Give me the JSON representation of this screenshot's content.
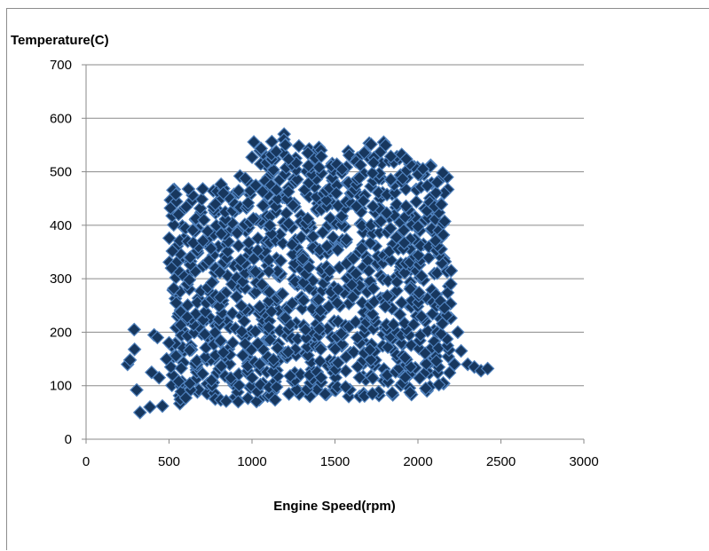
{
  "chart_data": {
    "type": "scatter",
    "title": "",
    "xlabel": "Engine Speed(rpm)",
    "ylabel": "Temperature(C)",
    "xlim": [
      0,
      3000
    ],
    "ylim": [
      0,
      700
    ],
    "x_ticks": [
      "0",
      "500",
      "1000",
      "1500",
      "2000",
      "2500",
      "3000"
    ],
    "y_ticks": [
      "0",
      "100",
      "200",
      "300",
      "400",
      "500",
      "600",
      "700"
    ],
    "grid": "horizontal",
    "legend": "none",
    "marker": "diamond",
    "marker_fill": "#17375e",
    "marker_edge": "#4f81bd",
    "series": [
      {
        "points": [
          [
            250,
            140
          ],
          [
            265,
            148
          ],
          [
            290,
            205
          ],
          [
            292,
            168
          ],
          [
            305,
            92
          ],
          [
            325,
            50
          ],
          [
            385,
            60
          ],
          [
            395,
            125
          ],
          [
            410,
            195
          ],
          [
            430,
            190
          ],
          [
            440,
            115
          ],
          [
            460,
            62
          ],
          [
            485,
            150
          ],
          [
            500,
            180
          ],
          [
            515,
            320
          ],
          [
            2150,
            498
          ],
          [
            2160,
            245
          ],
          [
            2200,
            315
          ],
          [
            2220,
            140
          ],
          [
            2240,
            200
          ],
          [
            2260,
            165
          ],
          [
            2300,
            140
          ],
          [
            2340,
            135
          ],
          [
            2380,
            128
          ],
          [
            2420,
            132
          ]
        ],
        "cloud": {
          "points_per_cell": 3,
          "columns": [
            [
              550,
              60,
              470
            ],
            [
              650,
              70,
              470
            ],
            [
              750,
              65,
              475
            ],
            [
              850,
              70,
              480
            ],
            [
              950,
              70,
              500
            ],
            [
              1050,
              65,
              560
            ],
            [
              1150,
              70,
              575
            ],
            [
              1250,
              70,
              560
            ],
            [
              1350,
              75,
              550
            ],
            [
              1450,
              75,
              550
            ],
            [
              1550,
              75,
              545
            ],
            [
              1650,
              80,
              550
            ],
            [
              1750,
              80,
              560
            ],
            [
              1850,
              80,
              550
            ],
            [
              1950,
              80,
              535
            ],
            [
              2050,
              90,
              525
            ],
            [
              2150,
              100,
              490
            ]
          ]
        }
      }
    ]
  }
}
